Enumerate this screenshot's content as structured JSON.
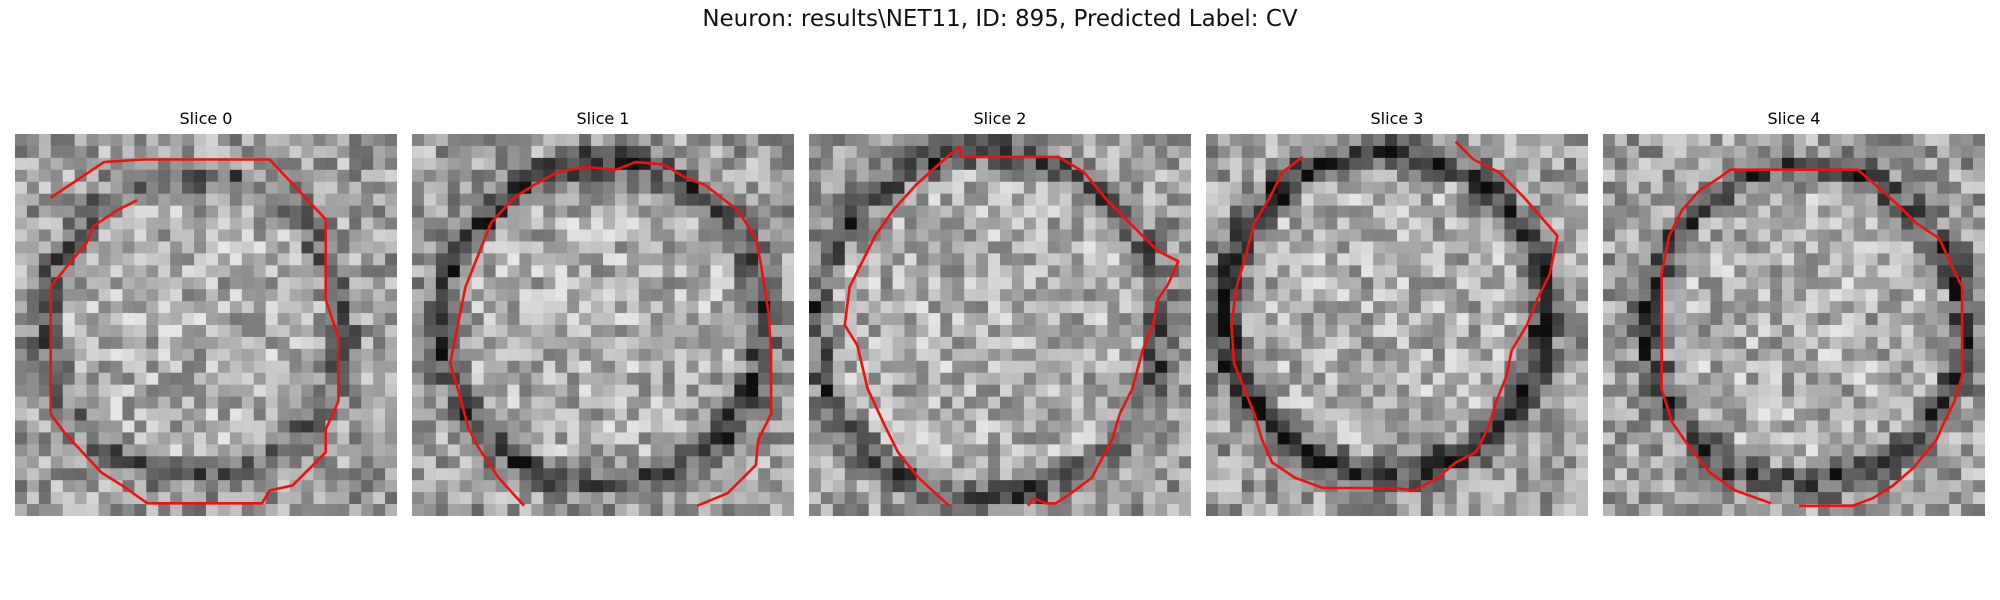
{
  "figure": {
    "title": "Neuron: results\\NET11, ID: 895, Predicted Label: CV"
  },
  "panels": [
    {
      "title": "Slice 0"
    },
    {
      "title": "Slice 1"
    },
    {
      "title": "Slice 2"
    },
    {
      "title": "Slice 3"
    },
    {
      "title": "Slice 4"
    }
  ],
  "colors": {
    "contour": "#ee1111",
    "background": "#ffffff"
  }
}
